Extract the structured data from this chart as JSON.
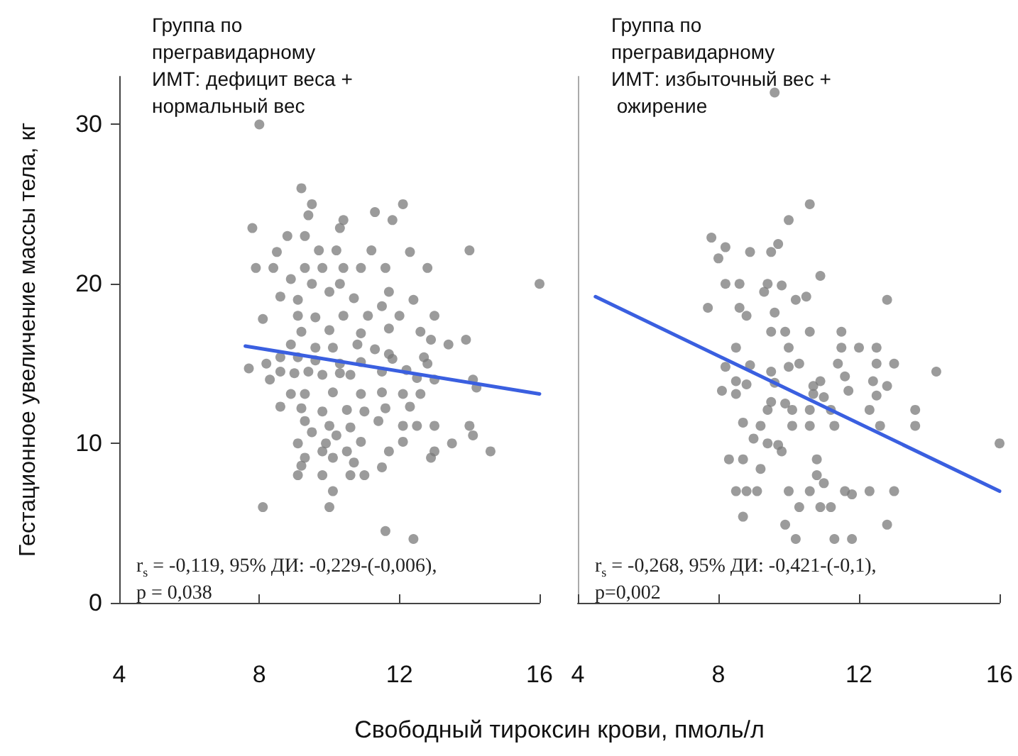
{
  "chart_data": [
    {
      "type": "scatter",
      "title": "Группа по прегравидарному ИМТ: дефицит веса + нормальный вес",
      "xlabel": "Свободный тироксин крови, пмоль/л",
      "ylabel": "Гестационное увеличение массы тела, кг",
      "xlim": [
        4,
        16
      ],
      "xticks": [
        4,
        8,
        12,
        16
      ],
      "ylim": [
        0,
        33
      ],
      "yticks": [
        0,
        10,
        20,
        30
      ],
      "annotations": [
        "r$_{s}$ = -0,119, 95% ДИ: -0,229-(-0,006),\np = 0,038"
      ],
      "series": [
        {
          "marker": "circle",
          "color": "#7a7a7a",
          "x": [
            8.0,
            7.8,
            9.2,
            9.5,
            9.4,
            8.8,
            9.3,
            10.4,
            10.3,
            11.3,
            12.1,
            11.8,
            7.9,
            8.4,
            8.5,
            9.7,
            10.2,
            11.2,
            12.3,
            14.0,
            9.3,
            9.8,
            10.4,
            10.9,
            11.6,
            12.8,
            8.9,
            9.5,
            10.3,
            16.0,
            8.6,
            9.1,
            10.0,
            10.7,
            11.7,
            12.4,
            8.1,
            9.1,
            9.6,
            10.4,
            11.1,
            11.5,
            12.0,
            13.0,
            9.2,
            10.0,
            10.9,
            11.7,
            12.6,
            13.9,
            12.9,
            13.4,
            8.9,
            9.6,
            10.1,
            10.8,
            11.3,
            11.7,
            7.7,
            8.2,
            8.6,
            9.1,
            9.6,
            10.3,
            10.9,
            11.8,
            12.7,
            12.8,
            8.6,
            9.0,
            9.4,
            9.8,
            10.3,
            10.6,
            11.5,
            12.2,
            12.5,
            8.3,
            13.0,
            14.1,
            14.2,
            8.9,
            9.3,
            10.1,
            10.9,
            11.5,
            12.1,
            12.6,
            8.6,
            9.2,
            9.8,
            10.5,
            11.0,
            11.6,
            12.3,
            9.3,
            10.0,
            10.6,
            11.4,
            12.1,
            12.5,
            13.0,
            14.0,
            14.1,
            9.5,
            10.2,
            9.1,
            9.9,
            10.9,
            12.1,
            13.5,
            9.8,
            10.5,
            11.7,
            13.0,
            14.6,
            9.3,
            10.1,
            10.7,
            11.5,
            9.2,
            12.9,
            9.1,
            9.8,
            10.6,
            11.0,
            10.1,
            8.1,
            10.0,
            11.6,
            12.4
          ],
          "values": [
            30,
            23.5,
            26,
            25,
            24.3,
            23,
            23,
            24,
            23.5,
            24.5,
            25,
            24,
            21,
            21,
            22,
            22.1,
            22.1,
            22.1,
            22,
            22.1,
            21,
            21,
            21,
            21,
            21,
            21,
            20.3,
            20,
            20,
            20,
            19.2,
            19,
            19.5,
            19.1,
            19.5,
            19,
            17.8,
            18,
            17.9,
            18,
            18,
            18.6,
            18,
            18,
            17,
            17.1,
            16.9,
            17.2,
            17,
            16.5,
            16.5,
            16.2,
            16.2,
            16,
            16,
            16.2,
            15.9,
            15.6,
            14.7,
            15,
            15.4,
            15.4,
            15.2,
            15,
            15.1,
            15.3,
            15.4,
            15,
            14.5,
            14.4,
            14.5,
            14.3,
            14.4,
            14.3,
            14.5,
            14.6,
            14.1,
            14,
            14,
            14,
            13.5,
            13.1,
            13.1,
            13.2,
            13.1,
            13.2,
            13.1,
            13.1,
            12.3,
            12.2,
            12,
            12.1,
            12,
            12.2,
            12.3,
            11.4,
            11.1,
            11,
            11.4,
            11.1,
            11.1,
            11.1,
            11.1,
            10.5,
            10.7,
            10.5,
            10,
            10,
            10.1,
            10.1,
            10,
            9.5,
            9.5,
            9.5,
            9.5,
            9.5,
            9.1,
            9.1,
            8.8,
            8.5,
            8.6,
            9.1,
            8,
            8,
            8,
            8,
            7,
            6,
            6,
            4.5,
            4
          ]
        },
        {
          "type": "line",
          "color": "#3a5fe0",
          "x": [
            7.6,
            16
          ],
          "values": [
            16.1,
            13.1
          ]
        }
      ]
    },
    {
      "type": "scatter",
      "title": "Группа по прегравидарному ИМТ: избыточный вес + ожирение",
      "xlim": [
        4,
        16
      ],
      "xticks": [
        4,
        8,
        12,
        16
      ],
      "ylim": [
        0,
        33
      ],
      "yticks": [
        0,
        10,
        20,
        30
      ],
      "tick_labels": "x",
      "annotations": [
        "r$_{s}$ = -0,268, 95% ДИ: -0,421-(-0,1),\np=0,002"
      ],
      "series": [
        {
          "marker": "circle",
          "color": "#7a7a7a",
          "x": [
            9.6,
            10.6,
            10.0,
            7.8,
            8.2,
            8.0,
            8.9,
            9.5,
            9.7,
            10.9,
            8.2,
            8.6,
            9.4,
            9.8,
            9.3,
            10.2,
            10.5,
            12.8,
            7.7,
            8.6,
            8.8,
            9.6,
            9.5,
            9.9,
            10.6,
            11.5,
            8.5,
            10.0,
            11.5,
            12.0,
            12.5,
            14.2,
            8.2,
            8.9,
            9.5,
            10.0,
            10.3,
            11.4,
            12.5,
            13.0,
            11.6,
            12.4,
            8.5,
            8.8,
            9.6,
            10.9,
            10.7,
            12.8,
            8.1,
            8.5,
            9.5,
            9.9,
            10.7,
            11.0,
            11.7,
            12.5,
            9.4,
            10.1,
            10.6,
            11.2,
            12.3,
            13.6,
            8.7,
            9.2,
            10.1,
            10.6,
            11.3,
            12.6,
            13.6,
            9.0,
            9.4,
            9.7,
            9.8,
            16.0,
            8.3,
            8.7,
            10.8,
            9.2,
            10.8,
            11.0,
            8.5,
            8.8,
            9.1,
            10.0,
            10.6,
            11.6,
            11.8,
            12.3,
            13.0,
            10.3,
            10.9,
            11.2,
            8.7,
            9.9,
            12.8,
            10.2,
            11.3,
            11.8
          ],
          "values": [
            32,
            25,
            24,
            22.9,
            22.3,
            21.6,
            22,
            22,
            22.5,
            20.5,
            20,
            20,
            20,
            19.9,
            19.5,
            19,
            19.2,
            19,
            18.5,
            18.5,
            18,
            18.2,
            17,
            17,
            17,
            17,
            16,
            16,
            16,
            16,
            16,
            14.5,
            14.8,
            14.9,
            14.5,
            14.8,
            15,
            15,
            15,
            15,
            14.2,
            13.9,
            13.9,
            13.7,
            13.8,
            13.9,
            13.6,
            13.6,
            13.3,
            13.1,
            12.6,
            12.5,
            13.1,
            12.9,
            13.3,
            13,
            12.1,
            12.1,
            12.1,
            12.1,
            12.1,
            12.1,
            11.3,
            11.1,
            11.1,
            11.1,
            11.1,
            11.1,
            11.1,
            10.3,
            10,
            9.9,
            9.5,
            10,
            9,
            9,
            9,
            8.4,
            8,
            7.5,
            7,
            7,
            7,
            7,
            7,
            7,
            6.8,
            7,
            7,
            6,
            6,
            6,
            5.4,
            4.9,
            4.9,
            4,
            4,
            4
          ]
        },
        {
          "type": "line",
          "color": "#3a5fe0",
          "x": [
            4.5,
            16
          ],
          "values": [
            19.2,
            7.0
          ]
        }
      ]
    }
  ]
}
